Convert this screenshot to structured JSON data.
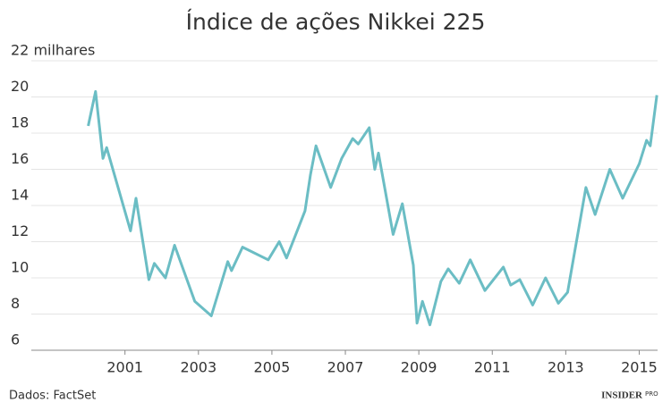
{
  "chart_data": {
    "type": "line",
    "title": "Índice de ações Nikkei 225",
    "source": "Dados: FactSet",
    "brand": "INSIDER",
    "brand_tag": "PRO",
    "xlim": [
      1998.45,
      2015.5
    ],
    "xticks": [
      2001,
      2003,
      2005,
      2007,
      2009,
      2011,
      2013,
      2015
    ],
    "ylim": [
      6,
      22
    ],
    "yticks": [
      6,
      8,
      10,
      12,
      14,
      16,
      18,
      20,
      {
        "value": 22,
        "label": "22 milhares"
      }
    ],
    "grid": true,
    "series": [
      {
        "name": "Nikkei 225",
        "color": "#6bbdc4",
        "x": [
          2000.0,
          2000.2,
          2000.4,
          2000.5,
          2001.15,
          2001.3,
          2001.65,
          2001.8,
          2002.1,
          2002.35,
          2002.9,
          2003.35,
          2003.8,
          2003.9,
          2004.2,
          2004.9,
          2005.2,
          2005.4,
          2005.9,
          2006.05,
          2006.2,
          2006.6,
          2006.9,
          2007.2,
          2007.35,
          2007.65,
          2007.8,
          2007.9,
          2008.3,
          2008.55,
          2008.85,
          2008.95,
          2009.1,
          2009.3,
          2009.6,
          2009.8,
          2010.1,
          2010.4,
          2010.8,
          2011.3,
          2011.5,
          2011.75,
          2012.1,
          2012.45,
          2012.8,
          2013.05,
          2013.55,
          2013.8,
          2014.2,
          2014.55,
          2015.0,
          2015.2,
          2015.3,
          2015.48
        ],
        "values": [
          18.4,
          20.3,
          16.6,
          17.2,
          12.6,
          14.4,
          9.9,
          10.8,
          10.0,
          11.8,
          8.7,
          7.9,
          10.9,
          10.4,
          11.7,
          11.0,
          12.0,
          11.1,
          13.7,
          15.7,
          17.3,
          15.0,
          16.6,
          17.7,
          17.4,
          18.3,
          16.0,
          16.9,
          12.4,
          14.1,
          10.7,
          7.5,
          8.7,
          7.4,
          9.8,
          10.5,
          9.7,
          11.0,
          9.3,
          10.6,
          9.6,
          9.9,
          8.5,
          10.0,
          8.6,
          9.2,
          15.0,
          13.5,
          16.0,
          14.4,
          16.3,
          17.6,
          17.3,
          20.1
        ]
      }
    ]
  }
}
